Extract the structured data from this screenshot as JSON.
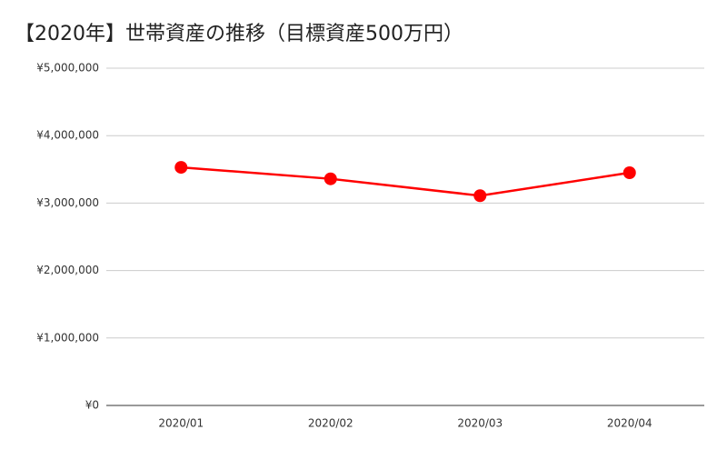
{
  "chart_data": {
    "type": "line",
    "title": "【2020年】世帯資産の推移（目標資産500万円）",
    "categories": [
      "2020/01",
      "2020/02",
      "2020/03",
      "2020/04"
    ],
    "values": [
      3530000,
      3360000,
      3110000,
      3450000
    ],
    "color": "#ff0000",
    "ylim": [
      0,
      5000000
    ],
    "yticks": [
      {
        "value": 0,
        "label": "¥0"
      },
      {
        "value": 1000000,
        "label": "¥1,000,000"
      },
      {
        "value": 2000000,
        "label": "¥2,000,000"
      },
      {
        "value": 3000000,
        "label": "¥3,000,000"
      },
      {
        "value": 4000000,
        "label": "¥4,000,000"
      },
      {
        "value": 5000000,
        "label": "¥5,000,000"
      }
    ],
    "grid": true
  }
}
